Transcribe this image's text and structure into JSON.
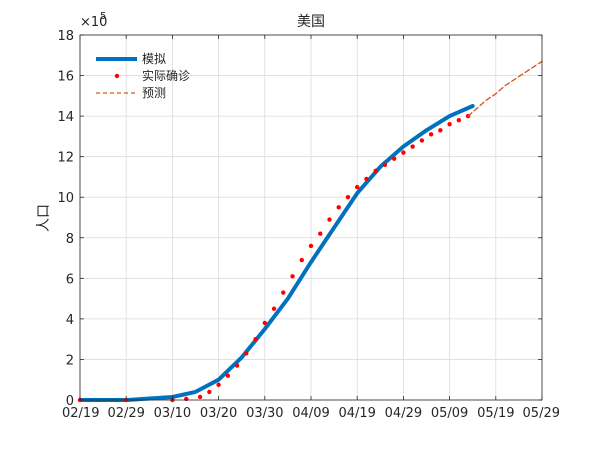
{
  "chart_data": {
    "type": "line",
    "title": "美国",
    "ylabel": "人口",
    "y_exponent_label": "×10",
    "y_exponent_power": "5",
    "ylim": [
      0,
      18
    ],
    "y_ticks": [
      0,
      2,
      4,
      6,
      8,
      10,
      12,
      14,
      16,
      18
    ],
    "xlim": [
      0,
      100
    ],
    "x_ticks": [
      {
        "day": 0,
        "label": "02/19"
      },
      {
        "day": 10,
        "label": "02/29"
      },
      {
        "day": 20,
        "label": "03/10"
      },
      {
        "day": 30,
        "label": "03/20"
      },
      {
        "day": 40,
        "label": "03/30"
      },
      {
        "day": 50,
        "label": "04/09"
      },
      {
        "day": 60,
        "label": "04/19"
      },
      {
        "day": 70,
        "label": "04/29"
      },
      {
        "day": 80,
        "label": "05/09"
      },
      {
        "day": 90,
        "label": "05/19"
      },
      {
        "day": 100,
        "label": "05/29"
      }
    ],
    "grid": true,
    "legend_position": "top-left",
    "colors": {
      "model": "#0072BD",
      "actual": "#FF0000",
      "forecast": "#D95319"
    },
    "series": [
      {
        "name": "模拟",
        "style": "thick-line",
        "x": [
          0,
          10,
          20,
          25,
          30,
          35,
          40,
          45,
          50,
          55,
          60,
          65,
          70,
          75,
          80,
          85
        ],
        "y": [
          0,
          0,
          0.15,
          0.4,
          1.0,
          2.1,
          3.5,
          5.0,
          6.8,
          8.5,
          10.2,
          11.5,
          12.5,
          13.3,
          14.0,
          14.5
        ]
      },
      {
        "name": "实际确诊",
        "style": "dots",
        "x": [
          0,
          10,
          20,
          23,
          26,
          28,
          30,
          32,
          34,
          36,
          38,
          40,
          42,
          44,
          46,
          48,
          50,
          52,
          54,
          56,
          58,
          60,
          62,
          64,
          66,
          68,
          70,
          72,
          74,
          76,
          78,
          80,
          82,
          84
        ],
        "y": [
          0,
          0,
          0,
          0.05,
          0.15,
          0.4,
          0.75,
          1.2,
          1.7,
          2.3,
          3.0,
          3.8,
          4.5,
          5.3,
          6.1,
          6.9,
          7.6,
          8.2,
          8.9,
          9.5,
          10.0,
          10.5,
          10.9,
          11.3,
          11.6,
          11.9,
          12.2,
          12.5,
          12.8,
          13.1,
          13.3,
          13.6,
          13.8,
          14.0
        ]
      },
      {
        "name": "预测",
        "style": "dashed",
        "x": [
          84,
          86,
          88,
          90,
          92,
          94,
          96,
          98,
          100
        ],
        "y": [
          14.0,
          14.4,
          14.8,
          15.1,
          15.5,
          15.8,
          16.1,
          16.4,
          16.7
        ]
      }
    ]
  }
}
